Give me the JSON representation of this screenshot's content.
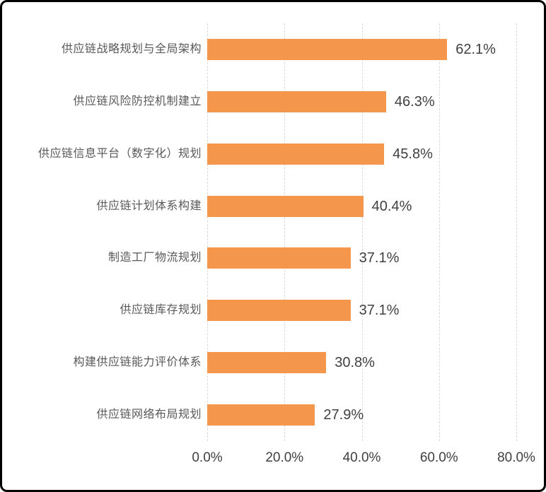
{
  "chart_data": {
    "type": "bar",
    "orientation": "horizontal",
    "title": "",
    "xlabel": "",
    "ylabel": "",
    "categories": [
      "供应链战略规划与全局架构",
      "供应链风险防控机制建立",
      "供应链信息平台（数字化）规划",
      "供应链计划体系构建",
      "制造工厂物流规划",
      "供应链库存规划",
      "构建供应链能力评价体系",
      "供应链网络布局规划"
    ],
    "values": [
      62.1,
      46.3,
      45.8,
      40.4,
      37.1,
      37.1,
      30.8,
      27.9
    ],
    "value_labels": [
      "62.1%",
      "46.3%",
      "45.8%",
      "40.4%",
      "37.1%",
      "37.1%",
      "30.8%",
      "27.9%"
    ],
    "x_ticks": [
      "0.0%",
      "20.0%",
      "40.0%",
      "60.0%",
      "80.0%"
    ],
    "x_tick_values": [
      0,
      20,
      40,
      60,
      80
    ],
    "xlim": [
      0,
      80
    ],
    "grid": "vertical-dashed",
    "legend_position": "none",
    "colors": {
      "bar": "#f4964b",
      "gridline": "#d9d9d9",
      "category_text": "#595959",
      "value_text": "#404040",
      "tick_text": "#404040",
      "frame_border": "#000000",
      "background": "#ffffff"
    }
  }
}
